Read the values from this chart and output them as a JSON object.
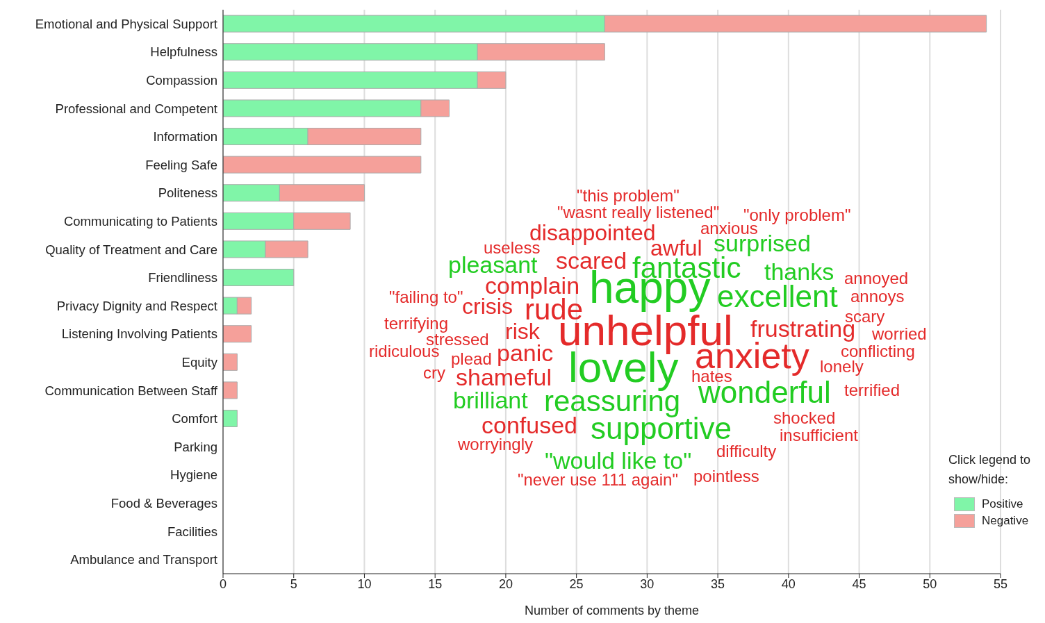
{
  "chart_data": {
    "type": "bar",
    "orientation": "horizontal",
    "stacked": true,
    "categories": [
      "Emotional and Physical Support",
      "Helpfulness",
      "Compassion",
      "Professional and Competent",
      "Information",
      "Feeling Safe",
      "Politeness",
      "Communicating to Patients",
      "Quality of Treatment and Care",
      "Friendliness",
      "Privacy Dignity and Respect",
      "Listening Involving Patients",
      "Equity",
      "Communication Between Staff",
      "Comfort",
      "Parking",
      "Hygiene",
      "Food & Beverages",
      "Facilities",
      "Ambulance and Transport"
    ],
    "series": [
      {
        "name": "Positive",
        "color": "#80f5a8",
        "values": [
          27,
          18,
          18,
          14,
          6,
          0,
          4,
          5,
          3,
          5,
          1,
          0,
          0,
          0,
          1,
          0,
          0,
          0,
          0,
          0
        ]
      },
      {
        "name": "Negative",
        "color": "#f5a09a",
        "values": [
          27,
          9,
          2,
          2,
          8,
          14,
          6,
          4,
          3,
          0,
          1,
          2,
          1,
          1,
          0,
          0,
          0,
          0,
          0,
          0
        ]
      }
    ],
    "xlim": [
      0,
      55
    ],
    "xticks": [
      0,
      5,
      10,
      15,
      20,
      25,
      30,
      35,
      40,
      45,
      50,
      55
    ],
    "xlabel": "Number of comments by theme",
    "legend_title": "Click legend to show/hide:",
    "legend": "bottom right",
    "grid": "x",
    "annotations": [
      "\"this problem\"",
      "\"wasnt really listened\"",
      "\"only problem\"",
      "disappointed",
      "anxious",
      "useless",
      "awful",
      "surprised",
      "pleasant",
      "scared",
      "fantastic",
      "thanks",
      "annoyed",
      "complain",
      "happy",
      "excellent",
      "\"failing to\"",
      "annoys",
      "crisis",
      "rude",
      "scary",
      "terrifying",
      "unhelpful",
      "frustrating",
      "worried",
      "risk",
      "stressed",
      "conflicting",
      "ridiculous",
      "anxiety",
      "plead",
      "panic",
      "lovely",
      "lonely",
      "cry",
      "shameful",
      "hates",
      "wonderful",
      "terrified",
      "brilliant",
      "reassuring",
      "shocked",
      "confused",
      "supportive",
      "insufficient",
      "worryingly",
      "difficulty",
      "\"would like to\"",
      "\"never use 111 again\"",
      "pointless"
    ]
  }
}
